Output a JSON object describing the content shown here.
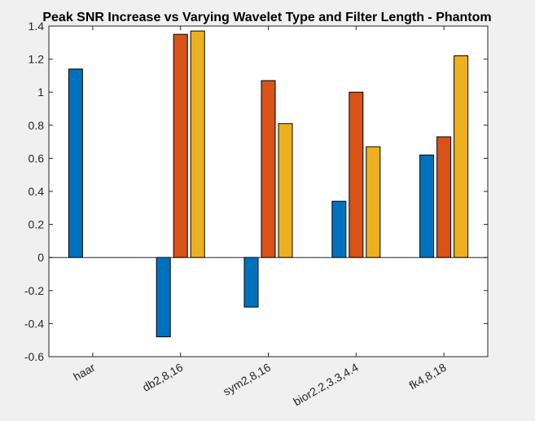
{
  "chart_data": {
    "type": "bar",
    "title": "Peak SNR Increase vs Varying Wavelet Type and Filter Length - Phantom",
    "xlabel": "",
    "ylabel": "",
    "categories": [
      "haar",
      "db2,8,16",
      "sym2,8,16",
      "bior2.2,3.3,4.4",
      "fk4,8,18"
    ],
    "series": [
      {
        "color": "#0072BD",
        "values": [
          1.14,
          -0.48,
          -0.3,
          0.34,
          0.62
        ]
      },
      {
        "color": "#D95319",
        "values": [
          0,
          1.35,
          1.07,
          1.0,
          0.73
        ]
      },
      {
        "color": "#EDB120",
        "values": [
          0,
          1.37,
          0.81,
          0.67,
          1.22
        ]
      }
    ],
    "ylim": [
      -0.6,
      1.4
    ],
    "yticks": [
      -0.6,
      -0.4,
      -0.2,
      0,
      0.2,
      0.4,
      0.6,
      0.8,
      1,
      1.2,
      1.4
    ],
    "ytick_labels": [
      "-0.6",
      "-0.4",
      "-0.2",
      "0",
      "0.2",
      "0.4",
      "0.6",
      "0.8",
      "1",
      "1.2",
      "1.4"
    ],
    "grid": false,
    "legend": false,
    "xtick_rotation_deg": 30
  }
}
